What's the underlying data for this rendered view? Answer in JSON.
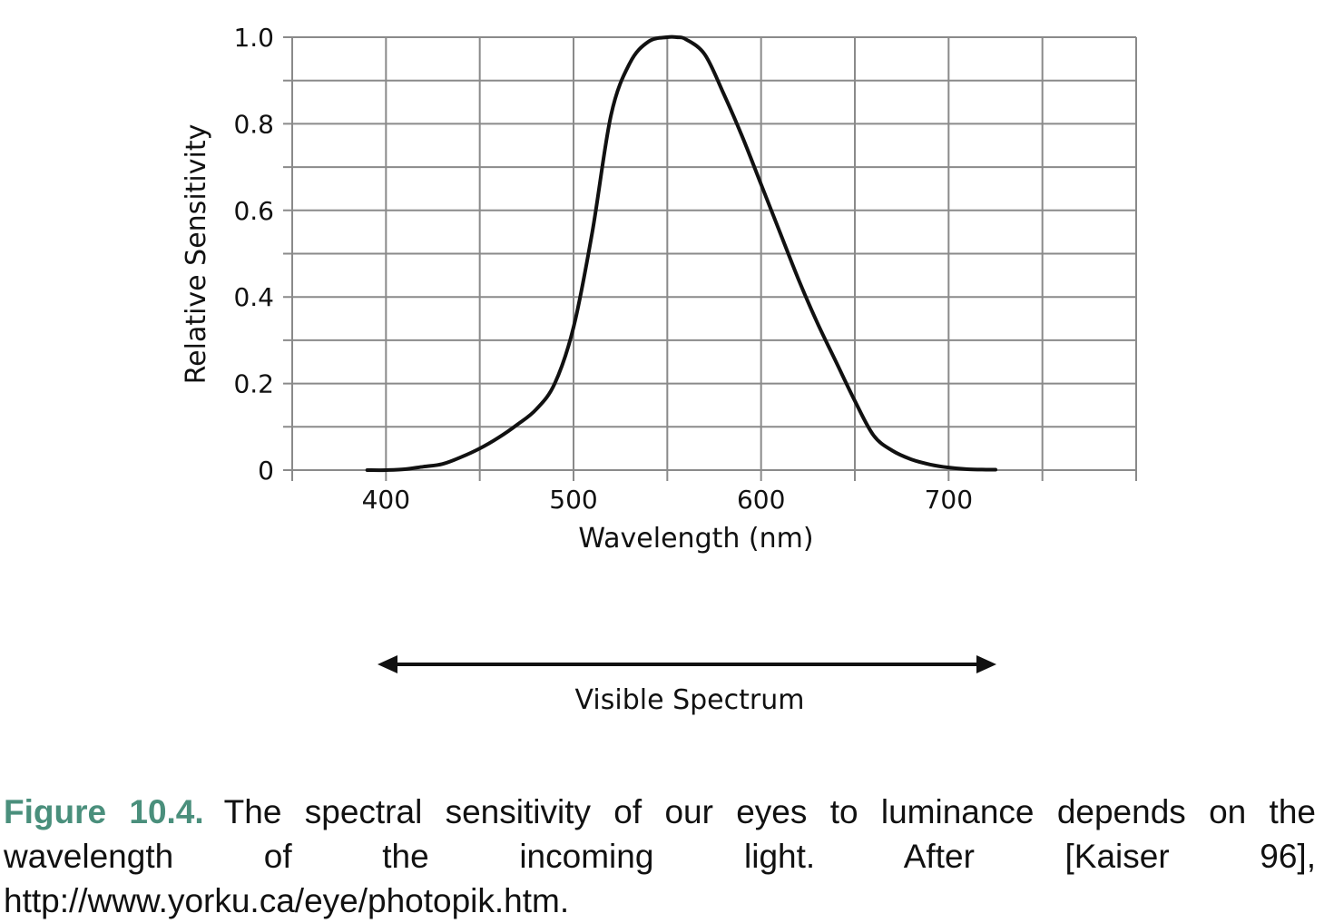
{
  "chart_data": {
    "type": "line",
    "xlabel": "Wavelength (nm)",
    "ylabel": "Relative Sensitivity",
    "xlim": [
      350,
      800
    ],
    "ylim": [
      0,
      1.0
    ],
    "x_ticks": [
      400,
      500,
      600,
      700
    ],
    "y_ticks": [
      0,
      0.2,
      0.4,
      0.6,
      0.8,
      1.0
    ],
    "y_tick_labels": [
      "0",
      "0.2",
      "0.4",
      "0.6",
      "0.8",
      "1.0"
    ],
    "grid": true,
    "series": [
      {
        "x": [
          390,
          400,
          410,
          420,
          430,
          440,
          450,
          460,
          470,
          480,
          490,
          500,
          510,
          520,
          530,
          540,
          550,
          555,
          560,
          570,
          580,
          590,
          600,
          610,
          620,
          630,
          640,
          650,
          660,
          670,
          680,
          690,
          700,
          710,
          720,
          725
        ],
        "y": [
          0.0,
          0.0,
          0.002,
          0.008,
          0.014,
          0.03,
          0.05,
          0.075,
          0.105,
          0.14,
          0.2,
          0.33,
          0.55,
          0.82,
          0.94,
          0.99,
          1.0,
          1.0,
          0.995,
          0.96,
          0.87,
          0.77,
          0.66,
          0.55,
          0.44,
          0.34,
          0.25,
          0.16,
          0.08,
          0.045,
          0.025,
          0.013,
          0.006,
          0.002,
          0.001,
          0.001
        ]
      }
    ]
  },
  "range_indicator": {
    "label": "Visible Spectrum"
  },
  "caption": {
    "label": "Figure 10.4.",
    "text": "The spectral sensitivity of our eyes to luminance depends on the wavelength of the incoming light. After [Kaiser 96], http://www.yorku.ca/eye/photopik.htm."
  },
  "colors": {
    "curve": "#111111",
    "grid": "#8a8a8a",
    "caption_label": "#4a8f7c"
  }
}
